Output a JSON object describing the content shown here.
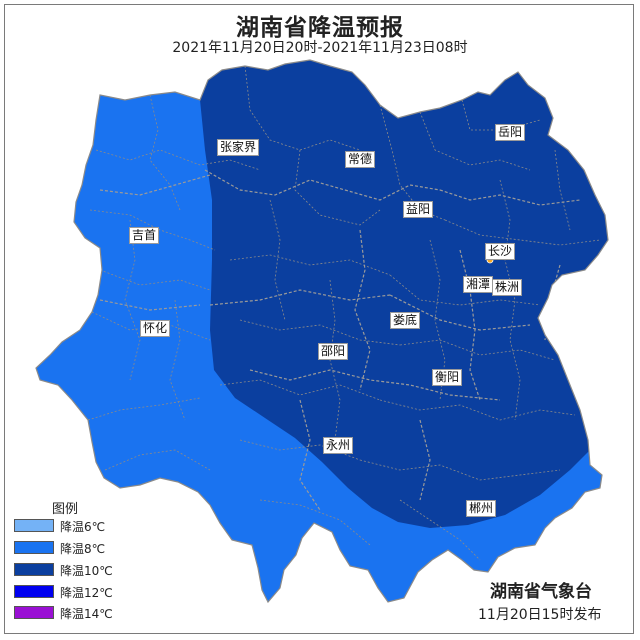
{
  "header": {
    "title": "湖南省降温预报",
    "subtitle": "2021年11月20日20时-2021年11月23日08时"
  },
  "cities": [
    {
      "name": "张家界",
      "id": "zhangjiajie"
    },
    {
      "name": "常德",
      "id": "changde"
    },
    {
      "name": "岳阳",
      "id": "yueyang"
    },
    {
      "name": "吉首",
      "id": "jishou"
    },
    {
      "name": "益阳",
      "id": "yiyang"
    },
    {
      "name": "长沙",
      "id": "changsha"
    },
    {
      "name": "湘潭",
      "id": "xiangtan"
    },
    {
      "name": "株洲",
      "id": "zhuzhou"
    },
    {
      "name": "怀化",
      "id": "huaihua"
    },
    {
      "name": "娄底",
      "id": "loudi"
    },
    {
      "name": "邵阳",
      "id": "shaoyang"
    },
    {
      "name": "衡阳",
      "id": "hengyang"
    },
    {
      "name": "永州",
      "id": "yongzhou"
    },
    {
      "name": "郴州",
      "id": "chenzhou"
    }
  ],
  "legend": {
    "title": "图例",
    "items": [
      {
        "label": "降温6℃",
        "color": "#74b2f6"
      },
      {
        "label": "降温8℃",
        "color": "#1a73f0"
      },
      {
        "label": "降温10℃",
        "color": "#0b3f9f"
      },
      {
        "label": "降温12℃",
        "color": "#0000f0"
      },
      {
        "label": "降温14℃",
        "color": "#9a10d4"
      }
    ]
  },
  "footer": {
    "issuer": "湖南省气象台",
    "issued_time": "11月20日15时发布"
  },
  "colors": {
    "zone_8": "#1a73f0",
    "zone_10": "#0b3f9f",
    "border": "#8a8a8a",
    "capital_marker": "#f5a623"
  }
}
